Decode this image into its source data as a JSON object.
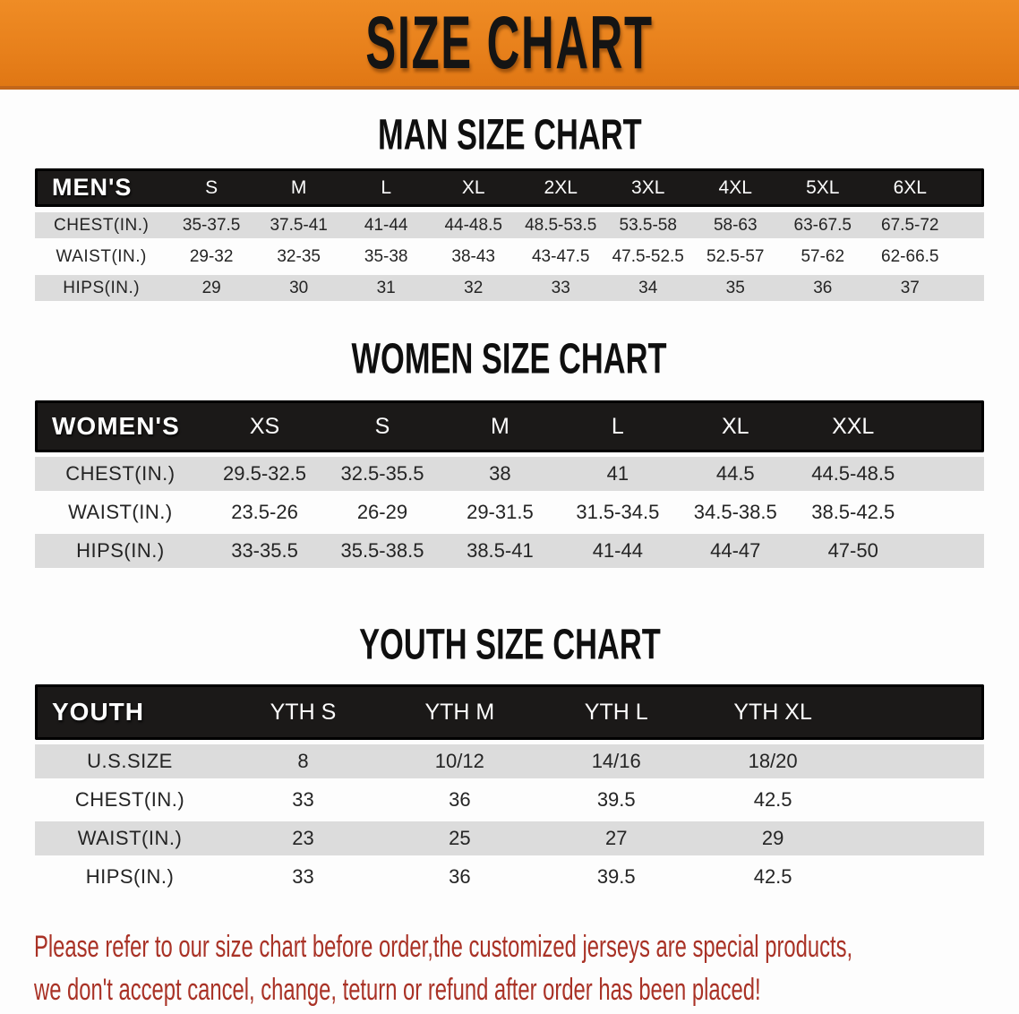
{
  "banner": {
    "title": "SIZE CHART",
    "bg_color": "#e8811c",
    "border_color": "#c2661a",
    "text_color": "#141414"
  },
  "colors": {
    "table_header_bg": "#1b1918",
    "row_shade": "#dcdcdc",
    "row_white": "#fdfdfd",
    "disclaimer_text": "#a93226"
  },
  "sections": [
    {
      "title": "MAN SIZE CHART",
      "label": "MEN'S",
      "columns": [
        "S",
        "M",
        "L",
        "XL",
        "2XL",
        "3XL",
        "4XL",
        "5XL",
        "6XL"
      ],
      "rows": [
        {
          "label": "CHEST(IN.)",
          "values": [
            "35-37.5",
            "37.5-41",
            "41-44",
            "44-48.5",
            "48.5-53.5",
            "53.5-58",
            "58-63",
            "63-67.5",
            "67.5-72"
          ]
        },
        {
          "label": "WAIST(IN.)",
          "values": [
            "29-32",
            "32-35",
            "35-38",
            "38-43",
            "43-47.5",
            "47.5-52.5",
            "52.5-57",
            "57-62",
            "62-66.5"
          ]
        },
        {
          "label": "HIPS(IN.)",
          "values": [
            "29",
            "30",
            "31",
            "32",
            "33",
            "34",
            "35",
            "36",
            "37"
          ]
        }
      ]
    },
    {
      "title": "WOMEN SIZE CHART",
      "label": "WOMEN'S",
      "columns": [
        "XS",
        "S",
        "M",
        "L",
        "XL",
        "XXL"
      ],
      "rows": [
        {
          "label": "CHEST(IN.)",
          "values": [
            "29.5-32.5",
            "32.5-35.5",
            "38",
            "41",
            "44.5",
            "44.5-48.5"
          ]
        },
        {
          "label": "WAIST(IN.)",
          "values": [
            "23.5-26",
            "26-29",
            "29-31.5",
            "31.5-34.5",
            "34.5-38.5",
            "38.5-42.5"
          ]
        },
        {
          "label": "HIPS(IN.)",
          "values": [
            "33-35.5",
            "35.5-38.5",
            "38.5-41",
            "41-44",
            "44-47",
            "47-50"
          ]
        }
      ]
    },
    {
      "title": "YOUTH SIZE CHART",
      "label": "YOUTH",
      "columns": [
        "YTH S",
        "YTH M",
        "YTH L",
        "YTH XL"
      ],
      "rows": [
        {
          "label": "U.S.SIZE",
          "values": [
            "8",
            "10/12",
            "14/16",
            "18/20"
          ]
        },
        {
          "label": "CHEST(IN.)",
          "values": [
            "33",
            "36",
            "39.5",
            "42.5"
          ]
        },
        {
          "label": "WAIST(IN.)",
          "values": [
            "23",
            "25",
            "27",
            "29"
          ]
        },
        {
          "label": "HIPS(IN.)",
          "values": [
            "33",
            "36",
            "39.5",
            "42.5"
          ]
        }
      ]
    }
  ],
  "disclaimer": {
    "line1": "Please refer to our size chart before order,the customized jerseys are special products,",
    "line2": "we don't accept cancel, change, teturn or refund after order has been placed!"
  }
}
